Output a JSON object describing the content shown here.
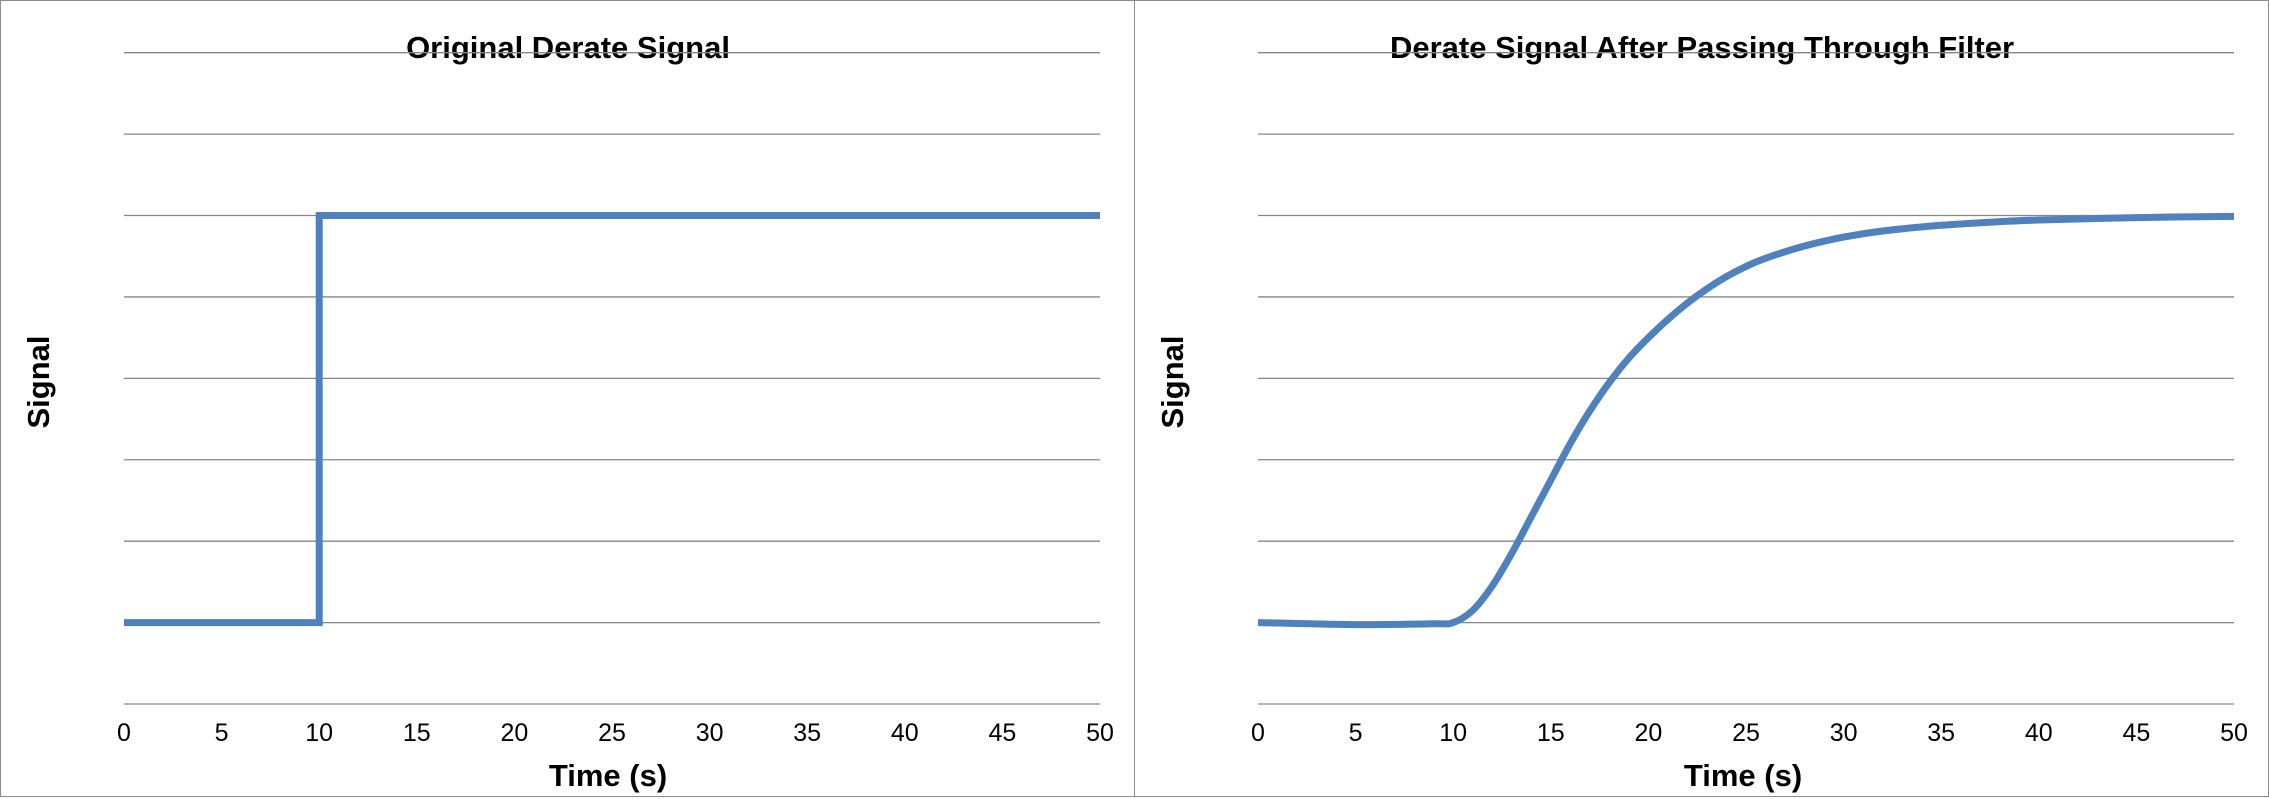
{
  "chart_data": [
    {
      "type": "line",
      "title": "Original Derate Signal",
      "xlabel": "Time (s)",
      "ylabel": "Signal",
      "xlim": [
        0,
        50
      ],
      "xticks": [
        0,
        5,
        10,
        15,
        20,
        25,
        30,
        35,
        40,
        45,
        50
      ],
      "ylim": [
        -0.2,
        1.5
      ],
      "y_tick_labels_shown": false,
      "gridlines_y": [
        -0.2,
        0,
        0.2,
        0.4,
        0.6,
        0.8,
        1.0,
        1.2,
        1.4
      ],
      "grid": "horizontal",
      "legend": "none",
      "color": "#4f81bd",
      "series": [
        {
          "x": [
            0,
            10,
            10,
            50
          ],
          "y": [
            0,
            0,
            1,
            1
          ]
        }
      ]
    },
    {
      "type": "line",
      "title": "Derate Signal After Passing Through Filter",
      "xlabel": "Time (s)",
      "ylabel": "Signal",
      "xlim": [
        0,
        50
      ],
      "xticks": [
        0,
        5,
        10,
        15,
        20,
        25,
        30,
        35,
        40,
        45,
        50
      ],
      "ylim": [
        -0.2,
        1.5
      ],
      "y_tick_labels_shown": false,
      "gridlines_y": [
        -0.2,
        0,
        0.2,
        0.4,
        0.6,
        0.8,
        1.0,
        1.2,
        1.4
      ],
      "grid": "horizontal",
      "legend": "none",
      "color": "#4f81bd",
      "series": [
        {
          "x": [
            0,
            5,
            9,
            10,
            11,
            12,
            13,
            14,
            15,
            16,
            17,
            18,
            19,
            20,
            21,
            22,
            23,
            24,
            25,
            26,
            28,
            30,
            32,
            35,
            38,
            40,
            45,
            50
          ],
          "y": [
            0,
            -0.005,
            -0.003,
            0,
            0.03,
            0.09,
            0.17,
            0.26,
            0.35,
            0.44,
            0.52,
            0.59,
            0.65,
            0.7,
            0.745,
            0.785,
            0.82,
            0.85,
            0.875,
            0.895,
            0.925,
            0.947,
            0.962,
            0.976,
            0.985,
            0.989,
            0.995,
            0.998
          ]
        }
      ]
    }
  ]
}
